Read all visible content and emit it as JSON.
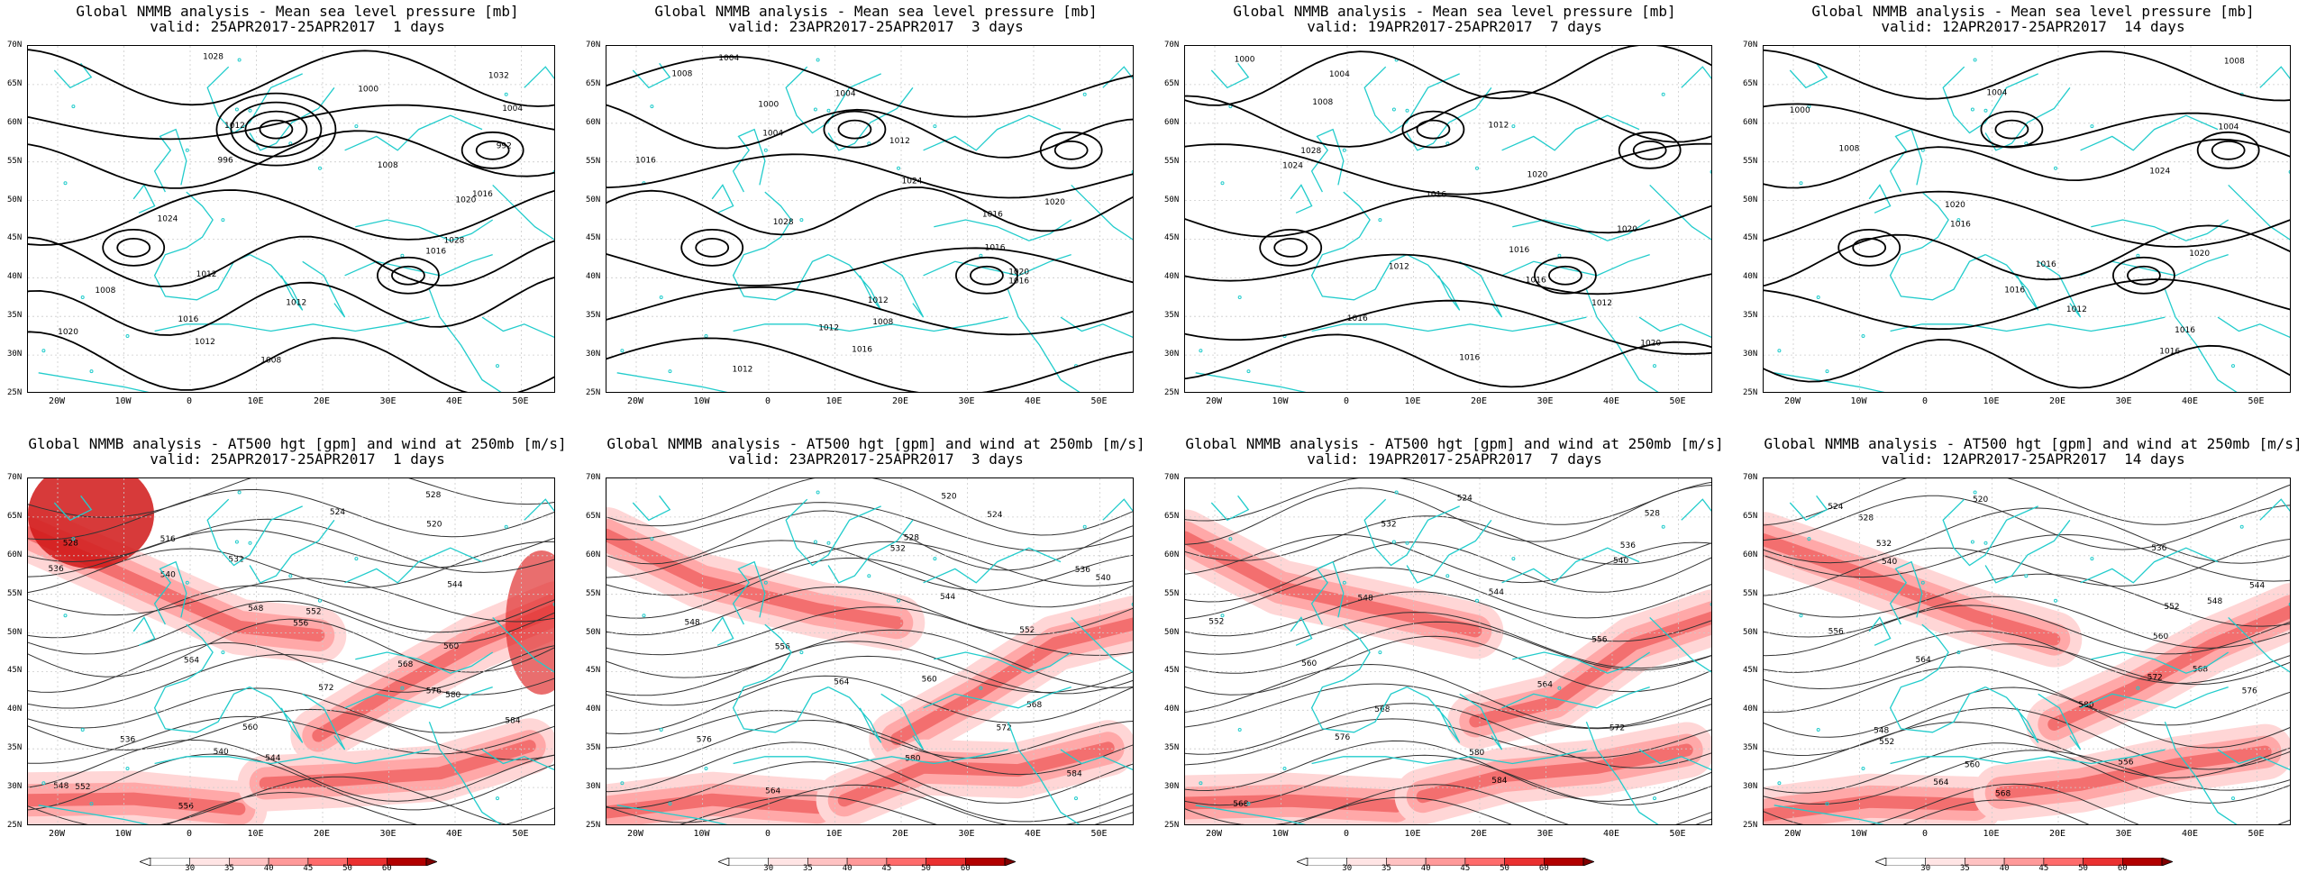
{
  "panels": [
    {
      "title": "Global NMMB analysis - Mean sea level pressure [mb]",
      "valid": "valid: 25APR2017-25APR2017  1 days",
      "kind": "mslp",
      "contour_labels": [
        "1028",
        "1032",
        "1000",
        "1004",
        "1012",
        "992",
        "996",
        "1008",
        "1016",
        "1020",
        "1024",
        "1028",
        "1016",
        "1012",
        "1008",
        "1012",
        "1016",
        "1020",
        "1012",
        "1008"
      ]
    },
    {
      "title": "Global NMMB analysis - Mean sea level pressure [mb]",
      "valid": "valid: 23APR2017-25APR2017  3 days",
      "kind": "mslp",
      "contour_labels": [
        "1004",
        "1008",
        "1004",
        "1000",
        "1004",
        "1012",
        "1016",
        "1024",
        "1020",
        "1016",
        "1028",
        "1016",
        "1020",
        "1016",
        "1012",
        "1008",
        "1012",
        "1016",
        "1012"
      ]
    },
    {
      "title": "Global NMMB analysis - Mean sea level pressure [mb]",
      "valid": "valid: 19APR2017-25APR2017  7 days",
      "kind": "mslp",
      "contour_labels": [
        "1000",
        "1004",
        "1008",
        "1012",
        "1028",
        "1024",
        "1020",
        "1016",
        "1020",
        "1016",
        "1012",
        "1016",
        "1012",
        "1016",
        "1020",
        "1016"
      ]
    },
    {
      "title": "Global NMMB analysis - Mean sea level pressure [mb]",
      "valid": "valid: 12APR2017-25APR2017  14 days",
      "kind": "mslp",
      "contour_labels": [
        "1008",
        "1004",
        "1000",
        "1004",
        "1008",
        "1024",
        "1020",
        "1016",
        "1020",
        "1016",
        "1016",
        "1012",
        "1016",
        "1016"
      ]
    },
    {
      "title": "Global NMMB analysis - AT500 hgt [gpm] and wind at 250mb [m/s]",
      "valid": "valid: 25APR2017-25APR2017  1 days",
      "kind": "hgt",
      "contour_labels": [
        "528",
        "524",
        "520",
        "516",
        "528",
        "532",
        "536",
        "540",
        "544",
        "548",
        "552",
        "556",
        "560",
        "564",
        "568",
        "572",
        "576",
        "580",
        "584",
        "560",
        "536",
        "540",
        "544",
        "548",
        "552",
        "556"
      ]
    },
    {
      "title": "Global NMMB analysis - AT500 hgt [gpm] and wind at 250mb [m/s]",
      "valid": "valid: 23APR2017-25APR2017  3 days",
      "kind": "hgt",
      "contour_labels": [
        "520",
        "524",
        "528",
        "532",
        "536",
        "540",
        "544",
        "548",
        "552",
        "556",
        "560",
        "564",
        "568",
        "572",
        "576",
        "580",
        "584",
        "564"
      ]
    },
    {
      "title": "Global NMMB analysis - AT500 hgt [gpm] and wind at 250mb [m/s]",
      "valid": "valid: 19APR2017-25APR2017  7 days",
      "kind": "hgt",
      "contour_labels": [
        "524",
        "528",
        "532",
        "536",
        "540",
        "544",
        "548",
        "552",
        "556",
        "560",
        "564",
        "568",
        "572",
        "576",
        "580",
        "584",
        "568"
      ]
    },
    {
      "title": "Global NMMB analysis - AT500 hgt [gpm] and wind at 250mb [m/s]",
      "valid": "valid: 12APR2017-25APR2017  14 days",
      "kind": "hgt",
      "contour_labels": [
        "520",
        "524",
        "528",
        "532",
        "536",
        "540",
        "544",
        "548",
        "552",
        "556",
        "560",
        "564",
        "568",
        "572",
        "576",
        "580",
        "548",
        "552",
        "556",
        "560",
        "564",
        "568"
      ]
    }
  ],
  "lat_labels": [
    "70N",
    "65N",
    "60N",
    "55N",
    "50N",
    "45N",
    "40N",
    "35N",
    "30N",
    "25N"
  ],
  "lon_labels": [
    "20W",
    "10W",
    "0",
    "10E",
    "20E",
    "30E",
    "40E",
    "50E"
  ],
  "colorbar": {
    "ticks": [
      "30",
      "35",
      "40",
      "45",
      "50",
      "60"
    ],
    "colors": [
      "#ffffff",
      "#ffe4e4",
      "#ffc2c2",
      "#ff9999",
      "#ff6b6b",
      "#ea3030",
      "#b20000"
    ]
  },
  "colors": {
    "coast": "#22cccc",
    "contour": "#000000",
    "wind_light": "#ffcccc",
    "wind_dark": "#e83838"
  }
}
